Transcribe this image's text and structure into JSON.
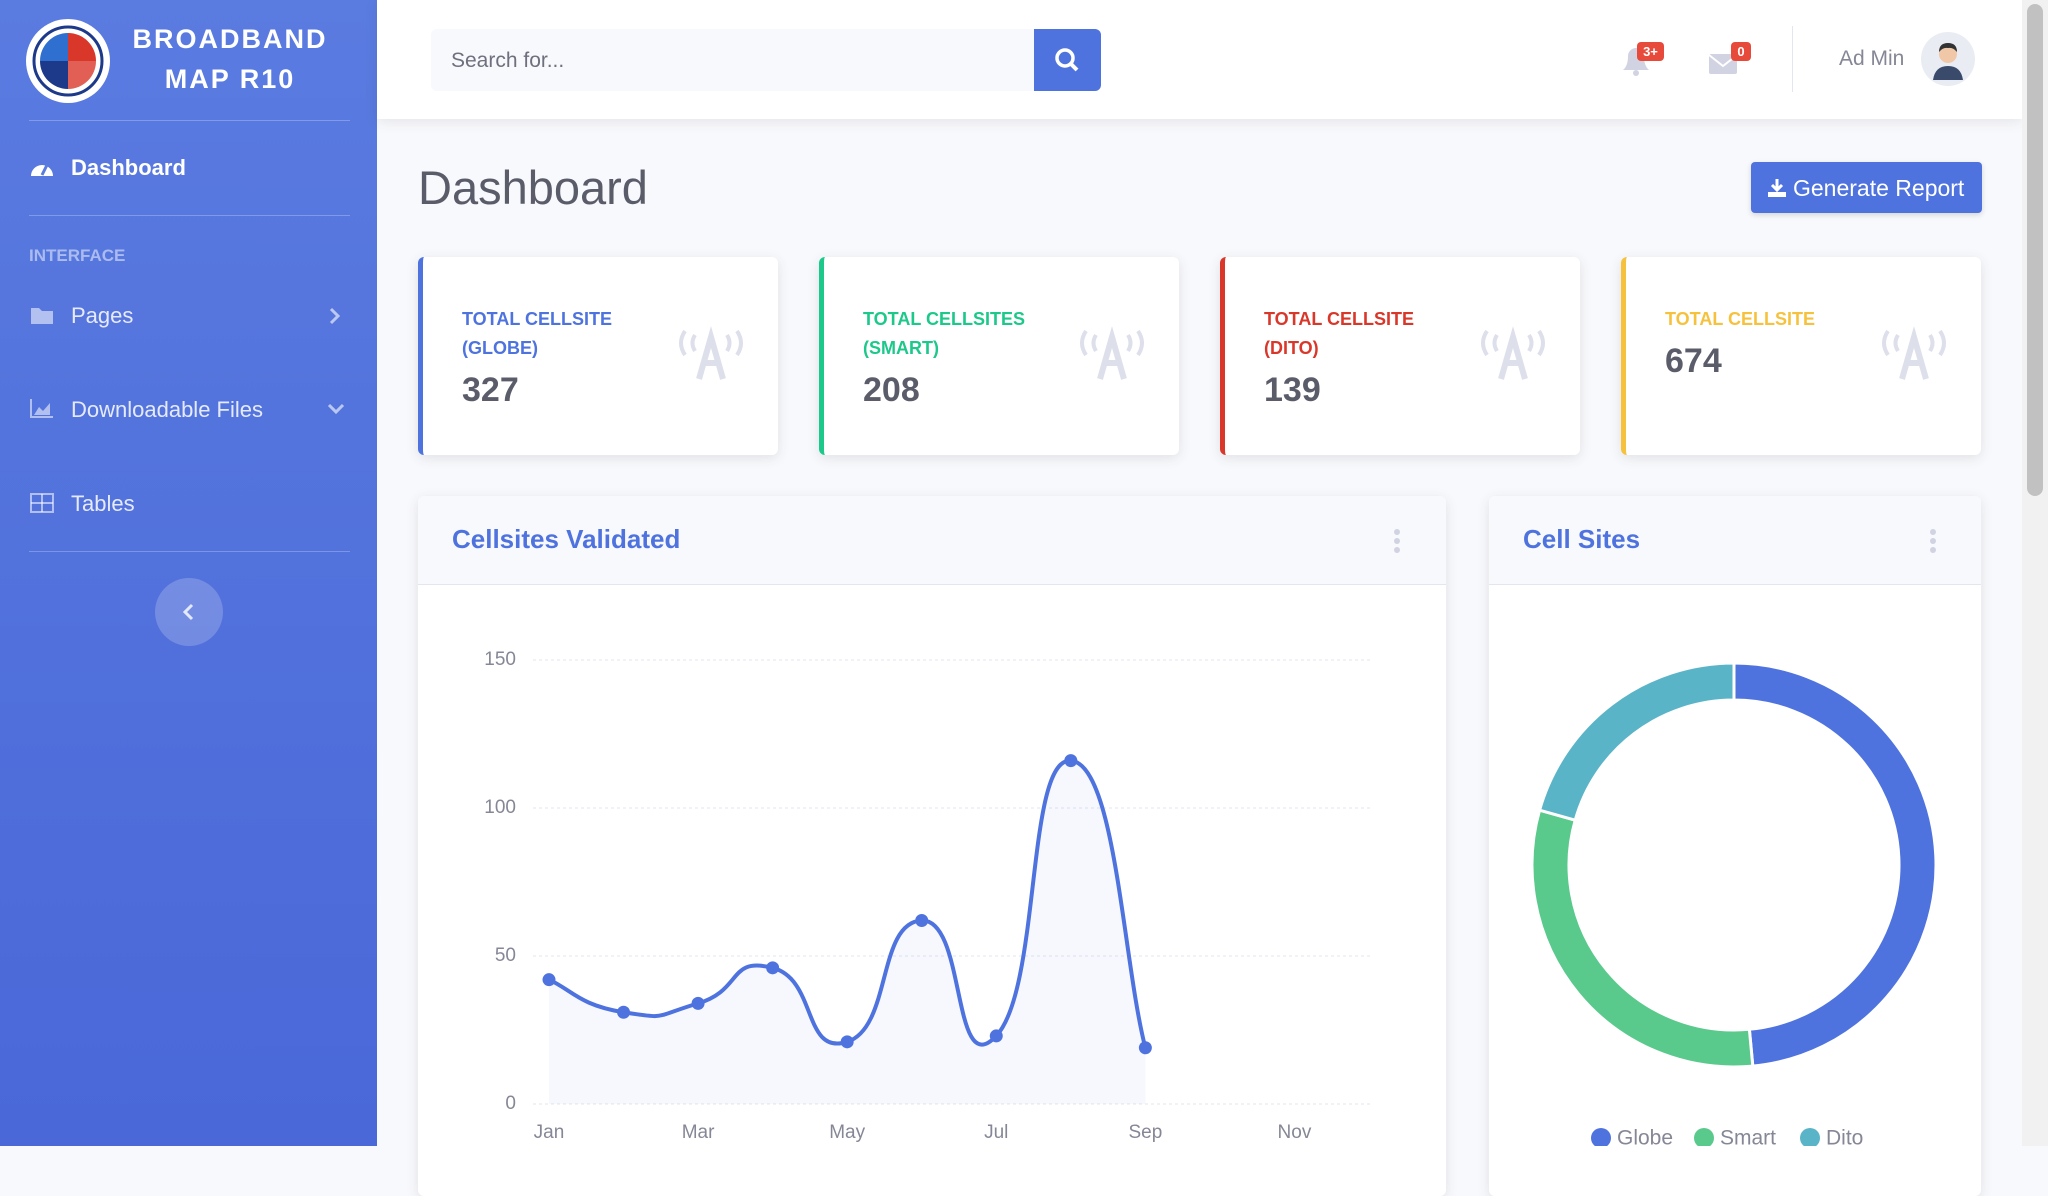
{
  "sidebar": {
    "brand": [
      "BROADBAND",
      "MAP R10"
    ],
    "nav": [
      {
        "label": "Dashboard"
      }
    ],
    "section": "INTERFACE",
    "items": [
      {
        "label": "Pages"
      },
      {
        "label": "Downloadable Files"
      },
      {
        "label": "Tables"
      }
    ]
  },
  "topbar": {
    "search_placeholder": "Search for...",
    "alerts_badge": "3+",
    "messages_badge": "0",
    "user": "Ad Min"
  },
  "header": {
    "title": "Dashboard",
    "button": "Generate Report"
  },
  "cards": [
    {
      "label": "TOTAL CELLSITE (GLOBE)",
      "value": 327,
      "color": "#4e73df"
    },
    {
      "label": "TOTAL CELLSITES (SMART)",
      "value": 208,
      "color": "#1cc88a"
    },
    {
      "label": "TOTAL CELLSITE (DITO)",
      "value": 139,
      "color": "#d9372a"
    },
    {
      "label": "TOTAL CELLSITE",
      "value": 674,
      "color": "#f6c23e"
    }
  ],
  "chart_data": [
    {
      "type": "line",
      "title": "Cellsites Validated",
      "categories": [
        "Jan",
        null,
        "Mar",
        null,
        "May",
        null,
        "Jul",
        null,
        "Sep",
        null,
        "Nov",
        null
      ],
      "values": [
        42,
        31,
        34,
        46,
        21,
        62,
        23,
        116,
        19,
        null,
        null,
        null
      ],
      "color": "#4e73df",
      "ylim": [
        0,
        150
      ],
      "yticks": [
        0,
        50,
        100,
        150
      ],
      "grid": true
    },
    {
      "type": "pie",
      "title": "Cell Sites",
      "categories": [
        "Globe",
        "Smart",
        "Dito"
      ],
      "values": [
        327,
        208,
        139
      ],
      "colors": [
        "#4e73df",
        "#5ac98c",
        "#5ab4c8"
      ],
      "donut": true,
      "legend": "bottom"
    }
  ]
}
